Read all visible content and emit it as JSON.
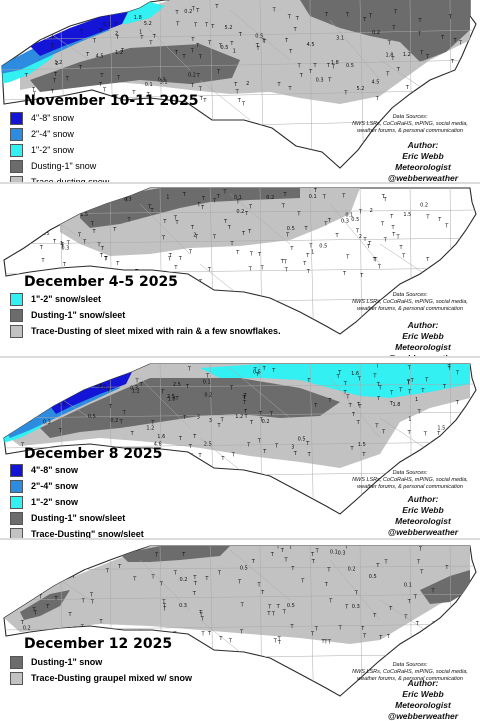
{
  "colors": {
    "snow_4_8": "#1414d6",
    "snow_2_4": "#2d8be0",
    "snow_1_2": "#33f0f2",
    "dusting_1": "#6c6c6c",
    "trace": "#c2c2c2",
    "background": "#ffffff",
    "separator": "#dcdcdc"
  },
  "marker_glyph": "T",
  "panels": [
    {
      "title": "November 10-11 2025",
      "legend": [
        {
          "label": "4\"-8\" snow",
          "color": "#1414d6"
        },
        {
          "label": "2\"-4\" snow",
          "color": "#2d8be0"
        },
        {
          "label": "1\"-2\" snow",
          "color": "#33f0f2"
        },
        {
          "label": "Dusting-1\" snow",
          "color": "#6c6c6c"
        },
        {
          "label": "Trace-dusting snow",
          "color": "#c2c2c2"
        }
      ],
      "sources": "Data Sources:\nNWS LSRs, CoCoRaHS, mPING, social media,\nweather forums, & personal communication",
      "author": [
        "Author:",
        "Eric Webb",
        "Meteorologist",
        "@webberweather"
      ],
      "values": [
        "5.2",
        "4.5",
        "3.1",
        "2",
        "1.8",
        "1.2",
        "1",
        "0.5",
        "0.3",
        "0.2",
        "0.1"
      ]
    },
    {
      "title": "December 4-5 2025",
      "legend": [
        {
          "label": "1\"-2\" snow/sleet",
          "color": "#33f0f2"
        },
        {
          "label": "Dusting-1\" snow/sleet",
          "color": "#6c6c6c"
        },
        {
          "label": "Trace-Dusting of sleet mixed with rain & a few snowflakes.",
          "color": "#c2c2c2"
        }
      ],
      "sources": "Data Sources:\nNWS LSRs, CoCoRaHS, mPING, social media,\nweather forums, & personal communication",
      "author": [
        "Author:",
        "Eric Webb",
        "Meteorologist",
        "@webberweather"
      ],
      "values": [
        "2",
        "1.5",
        "1",
        "0.5",
        "0.3",
        "0.2",
        "0.1"
      ]
    },
    {
      "title": "December 8 2025",
      "legend": [
        {
          "label": "4\"-8\" snow",
          "color": "#1414d6"
        },
        {
          "label": "2\"-4\" snow",
          "color": "#2d8be0"
        },
        {
          "label": "1\"-2\" snow",
          "color": "#33f0f2"
        },
        {
          "label": "Dusting-1\" snow/sleet",
          "color": "#6c6c6c"
        },
        {
          "label": "Trace-Dusting\" snow/sleet",
          "color": "#c2c2c2"
        }
      ],
      "sources": "Data Sources:\nNWS LSRs, CoCoRaHS, mPING, social media,\nweather forums, & personal communication",
      "author": [
        "Author:",
        "Eric Webb",
        "Meteorologist",
        "@webberweather"
      ],
      "values": [
        "4.6",
        "3",
        "2.5",
        "1.8",
        "1.6",
        "1.5",
        "1.2",
        "1",
        "0.5",
        "0.3",
        "0.2",
        "0.1"
      ]
    },
    {
      "title": "December 12 2025",
      "legend": [
        {
          "label": "Dusting-1\" snow",
          "color": "#6c6c6c"
        },
        {
          "label": "Trace-Dusting graupel mixed w/ snow",
          "color": "#c2c2c2"
        }
      ],
      "sources": "Data Sources:\nNWS LSRs, CoCoRaHS, mPING, social media,\nweather forums, & personal communication",
      "author": [
        "Author:",
        "Eric Webb",
        "Meteorologist",
        "@webberweather"
      ],
      "values": [
        "0.5",
        "0.3",
        "0.2",
        "0.1"
      ]
    }
  ]
}
